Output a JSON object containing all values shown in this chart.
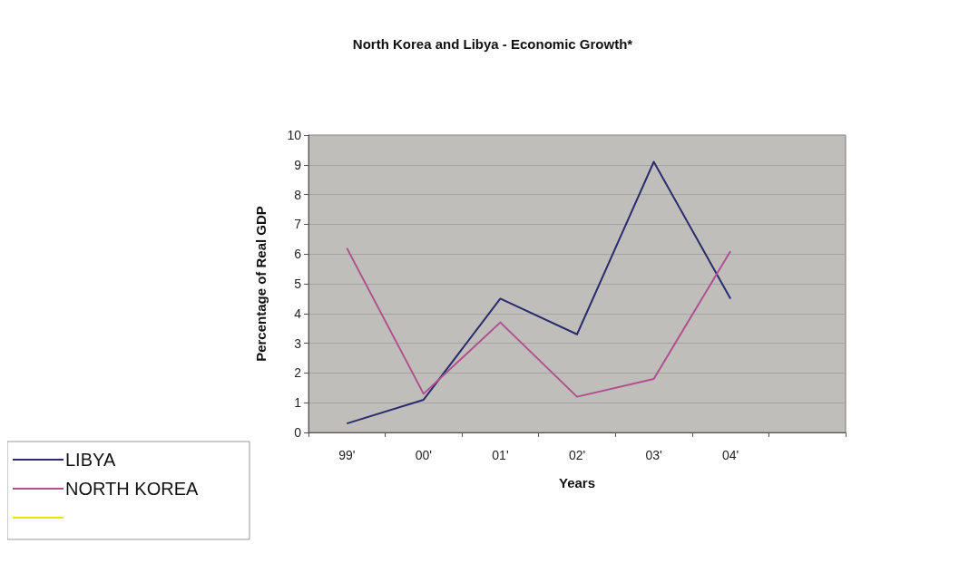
{
  "chart_data": {
    "type": "line",
    "title": "North Korea and Libya - Economic Growth*",
    "xlabel": "Years",
    "ylabel": "Percentage of Real GDP",
    "categories": [
      "99'",
      "00'",
      "01'",
      "02'",
      "03'",
      "04'",
      null
    ],
    "series": [
      {
        "name": "LIBYA",
        "color": "#2b2b6e",
        "values": [
          0.3,
          1.1,
          4.5,
          3.3,
          9.1,
          4.5,
          null
        ]
      },
      {
        "name": "NORTH KOREA",
        "color": "#b0508f",
        "values": [
          6.2,
          1.3,
          3.7,
          1.2,
          1.8,
          6.1,
          null
        ]
      },
      {
        "color": "#e6e600",
        "values": [
          null,
          null,
          null,
          null,
          null,
          null,
          null
        ]
      }
    ],
    "ylim": [
      0,
      10
    ],
    "yticks": [
      0,
      1,
      2,
      3,
      4,
      5,
      6,
      7,
      8,
      9,
      10
    ],
    "grid": "y",
    "legend": "bottom left",
    "marker": "none",
    "line_style": "solid"
  }
}
